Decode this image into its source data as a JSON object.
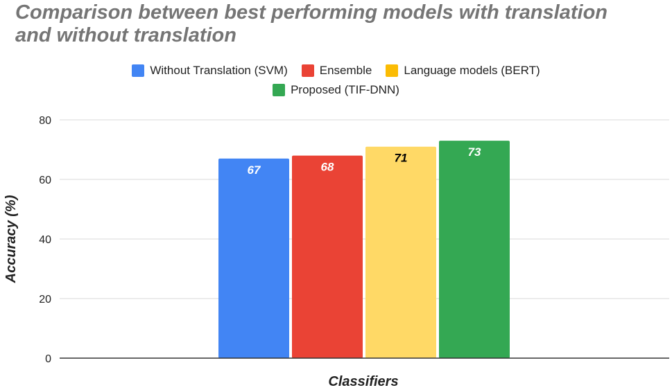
{
  "chart_data": {
    "type": "bar",
    "title": "Comparison between best performing models with translation and without translation",
    "xlabel": "Classifiers",
    "ylabel": "Accuracy (%)",
    "ylim": [
      0,
      80
    ],
    "yticks": [
      0,
      20,
      40,
      60,
      80
    ],
    "grid": true,
    "legend_position": "top",
    "series": [
      {
        "name": "Without Translation (SVM)",
        "values": [
          67
        ],
        "color": "#4285F4",
        "label_color": "#ffffff"
      },
      {
        "name": "Ensemble",
        "values": [
          68
        ],
        "color": "#EA4335",
        "label_color": "#ffffff"
      },
      {
        "name": "Language models (BERT)",
        "values": [
          71
        ],
        "color": "#FFD966",
        "swatch_color": "#FBBC04",
        "label_color": "#000000"
      },
      {
        "name": "Proposed (TIF-DNN)",
        "values": [
          73
        ],
        "color": "#34A853",
        "label_color": "#ffffff"
      }
    ]
  }
}
